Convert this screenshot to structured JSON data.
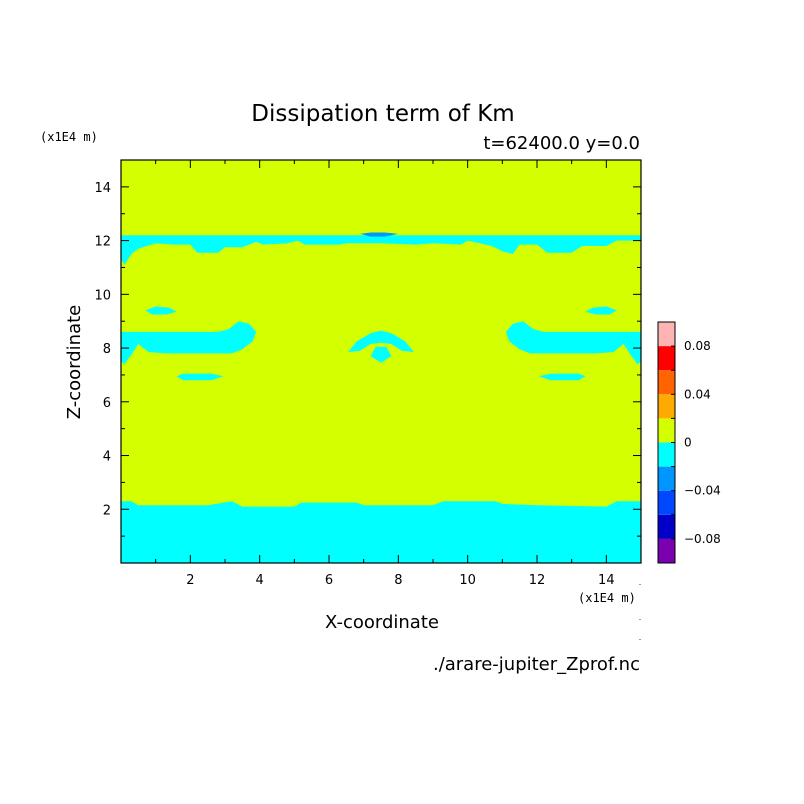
{
  "chart_data": {
    "type": "contour",
    "title": "Dissipation term of Km",
    "subtitle": "t=62400.0 y=0.0",
    "xlabel": "X-coordinate",
    "ylabel": "Z-coordinate",
    "x_unit": "(x1E4 m)",
    "y_unit": "(x1E4 m)",
    "xlim": [
      0,
      15
    ],
    "ylim": [
      0,
      15
    ],
    "x_ticks": [
      2,
      4,
      6,
      8,
      10,
      12,
      14
    ],
    "y_ticks": [
      2,
      4,
      6,
      8,
      10,
      12,
      14
    ],
    "source_file": "./arare-jupiter_Zprof.nc",
    "background_level_color": "#d4ff00",
    "regions": [
      {
        "level": "-0.02..0",
        "color": "#00ffff",
        "polygon": [
          [
            0,
            0
          ],
          [
            15,
            0
          ],
          [
            15,
            2.3
          ],
          [
            14.3,
            2.3
          ],
          [
            14,
            2.1
          ],
          [
            12,
            2.15
          ],
          [
            11,
            2.2
          ],
          [
            10.8,
            2.3
          ],
          [
            9.3,
            2.3
          ],
          [
            9,
            2.15
          ],
          [
            7,
            2.15
          ],
          [
            6.8,
            2.25
          ],
          [
            5.2,
            2.25
          ],
          [
            5,
            2.1
          ],
          [
            3.5,
            2.1
          ],
          [
            3.2,
            2.3
          ],
          [
            2.5,
            2.15
          ],
          [
            0.5,
            2.15
          ],
          [
            0.3,
            2.3
          ],
          [
            0,
            2.3
          ]
        ]
      },
      {
        "level": "-0.02..0",
        "color": "#00ffff",
        "polygon": [
          [
            0,
            12.2
          ],
          [
            15,
            12.2
          ],
          [
            15,
            12.0
          ],
          [
            14.3,
            12.0
          ],
          [
            14.0,
            11.8
          ],
          [
            13.3,
            11.8
          ],
          [
            13.0,
            11.55
          ],
          [
            12.3,
            11.55
          ],
          [
            12.0,
            11.85
          ],
          [
            11.5,
            11.85
          ],
          [
            11.3,
            11.5
          ],
          [
            11.0,
            11.6
          ],
          [
            10.7,
            11.8
          ],
          [
            10.0,
            12.0
          ],
          [
            9.8,
            11.85
          ],
          [
            9.0,
            11.9
          ],
          [
            8.5,
            11.85
          ],
          [
            7.5,
            11.9
          ],
          [
            6.5,
            11.9
          ],
          [
            6.3,
            11.85
          ],
          [
            5.3,
            11.85
          ],
          [
            5.1,
            12.0
          ],
          [
            4.8,
            11.9
          ],
          [
            4.1,
            11.85
          ],
          [
            3.9,
            11.95
          ],
          [
            3.5,
            11.75
          ],
          [
            3.0,
            11.75
          ],
          [
            2.8,
            11.55
          ],
          [
            2.2,
            11.55
          ],
          [
            2.0,
            11.85
          ],
          [
            1.5,
            11.85
          ],
          [
            1.0,
            11.9
          ],
          [
            0.5,
            11.7
          ],
          [
            0.3,
            11.5
          ],
          [
            0.1,
            11.1
          ],
          [
            0,
            11.3
          ]
        ]
      },
      {
        "level": "-0.04..-0.02",
        "color": "#0096ff",
        "polygon": [
          [
            6.9,
            12.25
          ],
          [
            7.2,
            12.3
          ],
          [
            7.6,
            12.3
          ],
          [
            8.0,
            12.25
          ],
          [
            7.6,
            12.15
          ],
          [
            7.2,
            12.15
          ]
        ]
      },
      {
        "level": "-0.02..0",
        "color": "#00ffff",
        "polygon": [
          [
            0,
            8.6
          ],
          [
            2.8,
            8.6
          ],
          [
            3.1,
            8.7
          ],
          [
            3.4,
            9.0
          ],
          [
            3.7,
            8.9
          ],
          [
            3.9,
            8.6
          ],
          [
            3.8,
            8.25
          ],
          [
            3.5,
            7.95
          ],
          [
            3.2,
            7.8
          ],
          [
            2.5,
            7.8
          ],
          [
            1.3,
            7.8
          ],
          [
            0.8,
            7.85
          ],
          [
            0.5,
            8.15
          ],
          [
            0.3,
            7.75
          ],
          [
            0.1,
            7.4
          ],
          [
            0,
            7.5
          ]
        ]
      },
      {
        "level": "-0.02..0",
        "color": "#00ffff",
        "polygon": [
          [
            15,
            8.6
          ],
          [
            12.2,
            8.6
          ],
          [
            11.9,
            8.7
          ],
          [
            11.6,
            9.0
          ],
          [
            11.3,
            8.9
          ],
          [
            11.1,
            8.6
          ],
          [
            11.2,
            8.25
          ],
          [
            11.5,
            7.95
          ],
          [
            11.8,
            7.8
          ],
          [
            12.5,
            7.8
          ],
          [
            13.7,
            7.8
          ],
          [
            14.2,
            7.85
          ],
          [
            14.5,
            8.15
          ],
          [
            14.7,
            7.75
          ],
          [
            14.9,
            7.4
          ],
          [
            15,
            7.5
          ]
        ]
      },
      {
        "level": "-0.02..0",
        "color": "#00ffff",
        "polygon": [
          [
            6.55,
            7.85
          ],
          [
            6.8,
            8.25
          ],
          [
            7.2,
            8.55
          ],
          [
            7.5,
            8.65
          ],
          [
            7.8,
            8.55
          ],
          [
            8.2,
            8.25
          ],
          [
            8.45,
            7.85
          ],
          [
            8.1,
            7.9
          ],
          [
            7.8,
            8.15
          ],
          [
            7.5,
            8.2
          ],
          [
            7.2,
            8.15
          ],
          [
            6.9,
            7.9
          ]
        ]
      },
      {
        "level": "-0.02..0",
        "color": "#00ffff",
        "polygon": [
          [
            7.2,
            7.7
          ],
          [
            7.5,
            7.45
          ],
          [
            7.8,
            7.7
          ],
          [
            7.65,
            8.05
          ],
          [
            7.35,
            8.05
          ]
        ]
      },
      {
        "level": "-0.02..0",
        "color": "#00ffff",
        "polygon": [
          [
            0.7,
            9.4
          ],
          [
            1.0,
            9.55
          ],
          [
            1.4,
            9.5
          ],
          [
            1.6,
            9.35
          ],
          [
            1.3,
            9.25
          ],
          [
            0.9,
            9.25
          ]
        ]
      },
      {
        "level": "-0.02..0",
        "color": "#00ffff",
        "polygon": [
          [
            14.3,
            9.4
          ],
          [
            14.0,
            9.55
          ],
          [
            13.6,
            9.5
          ],
          [
            13.4,
            9.35
          ],
          [
            13.7,
            9.25
          ],
          [
            14.1,
            9.25
          ]
        ]
      },
      {
        "level": "-0.02..0",
        "color": "#00ffff",
        "polygon": [
          [
            1.6,
            6.95
          ],
          [
            1.8,
            7.05
          ],
          [
            2.6,
            7.05
          ],
          [
            2.95,
            6.95
          ],
          [
            2.6,
            6.8
          ],
          [
            1.8,
            6.8
          ]
        ]
      },
      {
        "level": "-0.02..0",
        "color": "#00ffff",
        "polygon": [
          [
            13.4,
            6.95
          ],
          [
            13.2,
            7.05
          ],
          [
            12.4,
            7.05
          ],
          [
            12.05,
            6.95
          ],
          [
            12.4,
            6.8
          ],
          [
            13.2,
            6.8
          ]
        ]
      }
    ],
    "colorbar": {
      "range": [
        -0.1,
        0.1
      ],
      "step": 0.02,
      "tick_values": [
        -0.08,
        -0.04,
        0,
        0.04,
        0.08
      ],
      "tick_labels": [
        "−0.08",
        "−0.04",
        "0",
        "0.04",
        "0.08"
      ],
      "colors": [
        "#7a00b0",
        "#0000c8",
        "#0048ff",
        "#0096ff",
        "#00ffff",
        "#d4ff00",
        "#ffaa00",
        "#ff6400",
        "#ff0000",
        "#ffb4b4"
      ]
    }
  }
}
